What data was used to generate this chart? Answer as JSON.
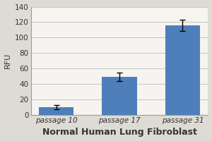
{
  "categories": [
    "passage 10",
    "passage 17",
    "passage 31"
  ],
  "values": [
    10,
    49,
    116
  ],
  "errors": [
    2.5,
    5.5,
    7
  ],
  "bar_color": "#4f7fba",
  "ylabel": "RFU",
  "xlabel": "Normal Human Lung Fibroblast",
  "ylim": [
    0,
    140
  ],
  "yticks": [
    0,
    20,
    40,
    60,
    80,
    100,
    120,
    140
  ],
  "figure_bg": "#dddbd3",
  "plot_bg": "#f5f4f0",
  "grid_color": "#c8c5bc",
  "xlabel_fontsize": 9,
  "ylabel_fontsize": 8,
  "tick_fontsize": 7.5,
  "bar_width": 0.55
}
